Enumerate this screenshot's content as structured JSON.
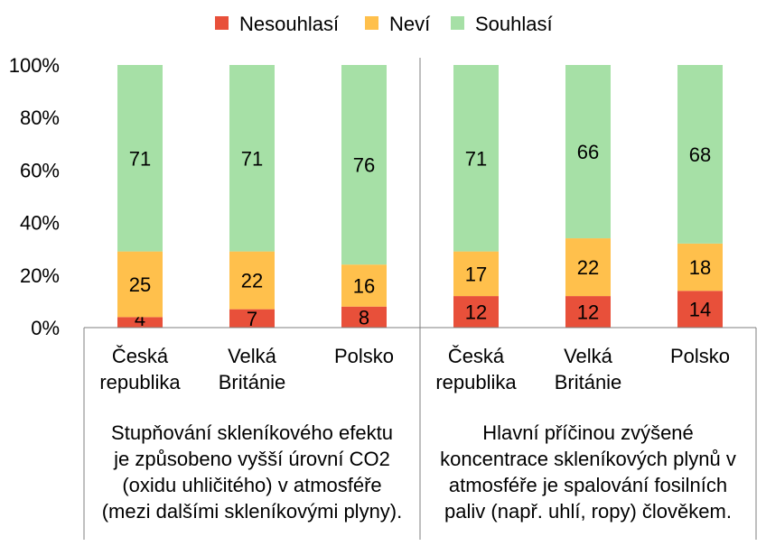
{
  "chart_data": {
    "type": "bar",
    "stacked": true,
    "ylim": [
      0,
      100
    ],
    "y_ticks": [
      "0%",
      "20%",
      "40%",
      "60%",
      "80%",
      "100%"
    ],
    "legend": {
      "placement": "top",
      "items": [
        {
          "label": "Nesouhlasí",
          "color": "#e8503a"
        },
        {
          "label": "Neví",
          "color": "#ffc04c"
        },
        {
          "label": "Souhlasí",
          "color": "#a6e0a6"
        }
      ]
    },
    "colors": {
      "nesouhlasi": "#e8503a",
      "nevi": "#ffc04c",
      "souhlasi": "#a6e0a6",
      "axis": "#7f7f7f"
    },
    "groups": [
      {
        "label_lines": [
          "Stupňování skleníkového efektu",
          "je způsobeno vyšší úrovní CO2",
          "(oxidu uhličitého) v atmosféře",
          "(mezi dalšími skleníkovými plyny)."
        ],
        "bars": [
          {
            "category_lines": [
              "Česká",
              "republika"
            ],
            "values": [
              4,
              25,
              71
            ]
          },
          {
            "category_lines": [
              "Velká",
              "Británie"
            ],
            "values": [
              7,
              22,
              71
            ]
          },
          {
            "category_lines": [
              "Polsko"
            ],
            "values": [
              8,
              16,
              76
            ]
          }
        ]
      },
      {
        "label_lines": [
          "Hlavní příčinou zvýšené",
          "koncentrace skleníkových plynů v",
          "atmosféře je spalování fosilních",
          "paliv (např. uhlí, ropy) člověkem."
        ],
        "bars": [
          {
            "category_lines": [
              "Česká",
              "republika"
            ],
            "values": [
              12,
              17,
              71
            ]
          },
          {
            "category_lines": [
              "Velká",
              "Británie"
            ],
            "values": [
              12,
              22,
              66
            ]
          },
          {
            "category_lines": [
              "Polsko"
            ],
            "values": [
              14,
              18,
              68
            ]
          }
        ]
      }
    ]
  }
}
